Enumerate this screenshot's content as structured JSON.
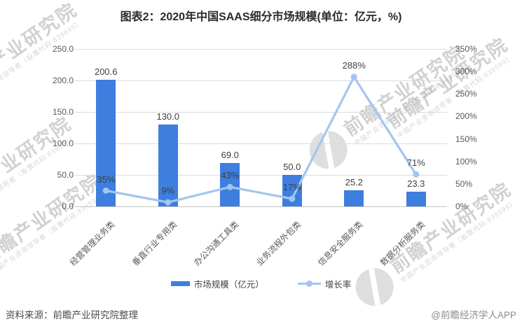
{
  "title": "图表2：2020年中国SAAS细分市场规模(单位：亿元，%)",
  "chart_data": {
    "type": "combo",
    "categories": [
      "经营管理业务类",
      "垂直行业专用类",
      "办公沟通工具类",
      "业务流程外包类",
      "信息安全服务类",
      "数据分析服务类"
    ],
    "series": [
      {
        "name": "市场规模（亿元）",
        "type": "bar",
        "axis": "left",
        "color": "#3D7EDF",
        "values": [
          200.6,
          130.0,
          69.0,
          50.0,
          25.2,
          23.3
        ],
        "labels": [
          "200.6",
          "130.0",
          "69.0",
          "50.0",
          "25.2",
          "23.3"
        ]
      },
      {
        "name": "增长率",
        "type": "line",
        "axis": "right",
        "color": "#A2C6EF",
        "values": [
          35,
          9,
          43,
          17,
          288,
          71
        ],
        "labels": [
          "35%",
          "9%",
          "43%",
          "17%",
          "288%",
          "71%"
        ]
      }
    ],
    "left_axis": {
      "min": 0,
      "max": 250,
      "tick_labels": [
        "250.0",
        "200.0",
        "150.0",
        "100.0",
        "50.0",
        "0.0"
      ]
    },
    "right_axis": {
      "min": 0,
      "max": 350,
      "tick_labels": [
        "350%",
        "300%",
        "250%",
        "200%",
        "150%",
        "100%",
        "50%",
        "0%"
      ]
    },
    "grid": "horizontal",
    "legend_position": "bottom"
  },
  "footer": {
    "source": "资料来源：前瞻产业研究院整理",
    "credit": "@前瞻经济学人APP"
  },
  "watermark": {
    "text": "前瞻产业研究院",
    "subtext": "中国产业咨询领导者（股票代码:839599）"
  }
}
